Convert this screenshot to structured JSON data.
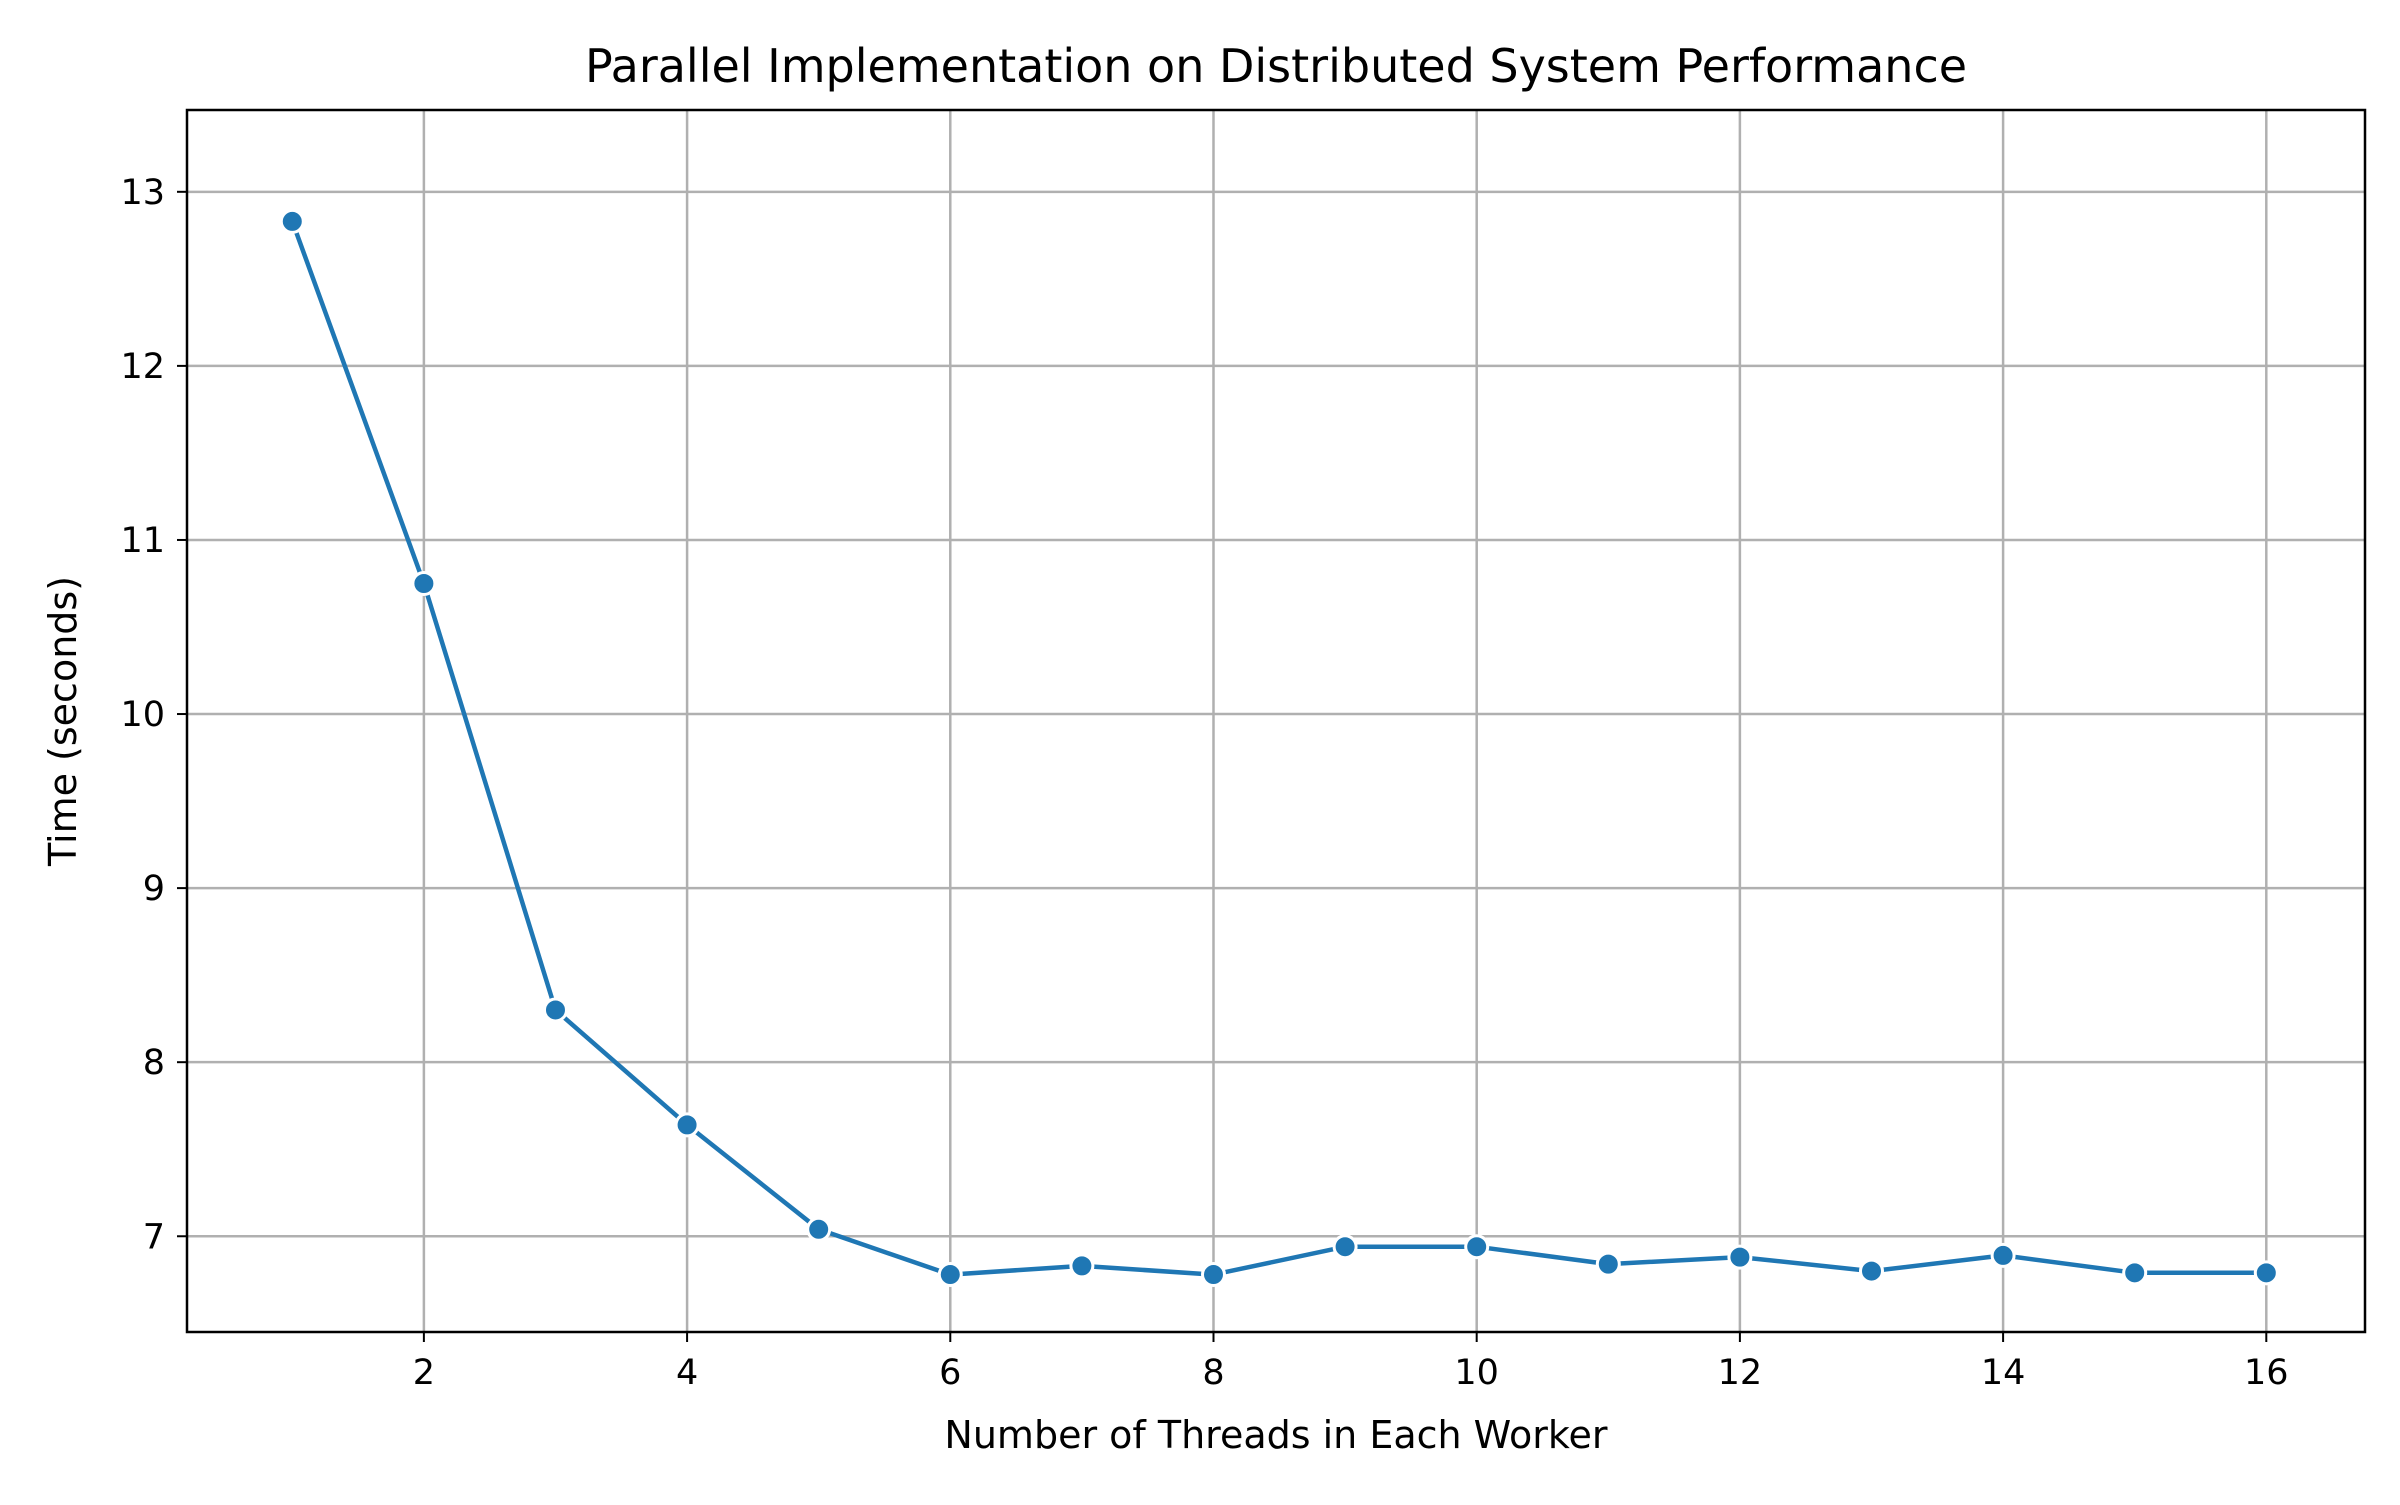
{
  "chart_data": {
    "type": "line",
    "title": "Parallel Implementation on Distributed System Performance",
    "xlabel": "Number of Threads in Each Worker",
    "ylabel": "Time (seconds)",
    "xlim": [
      0.2,
      16.75
    ],
    "ylim": [
      6.45,
      13.47
    ],
    "x_ticks": [
      2,
      4,
      6,
      8,
      10,
      12,
      14,
      16
    ],
    "y_ticks": [
      7,
      8,
      9,
      10,
      11,
      12,
      13
    ],
    "grid": true,
    "color": "#1f77b4",
    "marker": "circle",
    "x": [
      1,
      2,
      3,
      4,
      5,
      6,
      7,
      8,
      9,
      10,
      11,
      12,
      13,
      14,
      15,
      16
    ],
    "y": [
      12.83,
      10.75,
      8.3,
      7.64,
      7.04,
      6.78,
      6.83,
      6.78,
      6.94,
      6.94,
      6.84,
      6.88,
      6.8,
      6.89,
      6.79,
      6.79
    ]
  }
}
